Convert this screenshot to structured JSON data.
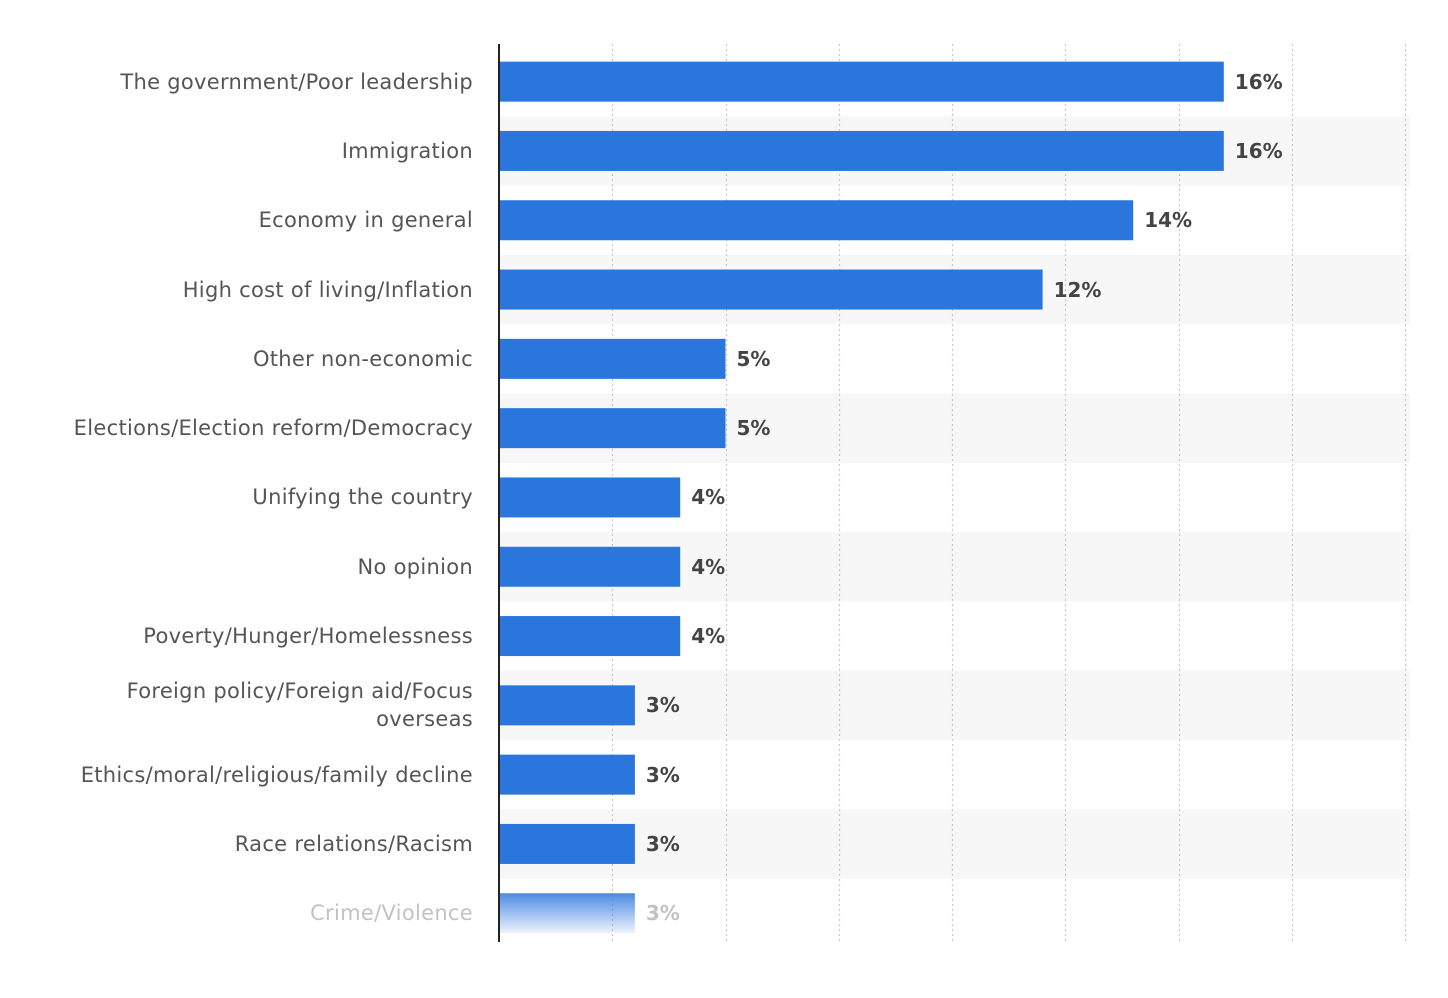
{
  "chart_data": {
    "type": "bar",
    "orientation": "horizontal",
    "categories": [
      "The government/Poor leadership",
      "Immigration",
      "Economy in general",
      "High cost of living/Inflation",
      "Other non-economic",
      "Elections/Election reform/Democracy",
      "Unifying the country",
      "No opinion",
      "Poverty/Hunger/Homelessness",
      "Foreign policy/Foreign aid/Focus overseas",
      "Ethics/moral/religious/family decline",
      "Race relations/Racism",
      "Crime/Violence"
    ],
    "values": [
      16,
      16,
      14,
      12,
      5,
      5,
      4,
      4,
      4,
      3,
      3,
      3,
      3
    ],
    "value_labels": [
      "16%",
      "16%",
      "14%",
      "12%",
      "5%",
      "5%",
      "4%",
      "4%",
      "4%",
      "3%",
      "3%",
      "3%",
      "3%"
    ],
    "unit": "%",
    "xlim": [
      0,
      20
    ],
    "grid": true,
    "bar_color": "#2a76dd",
    "band_color": "#f7f7f7",
    "faded_last_row": true
  }
}
